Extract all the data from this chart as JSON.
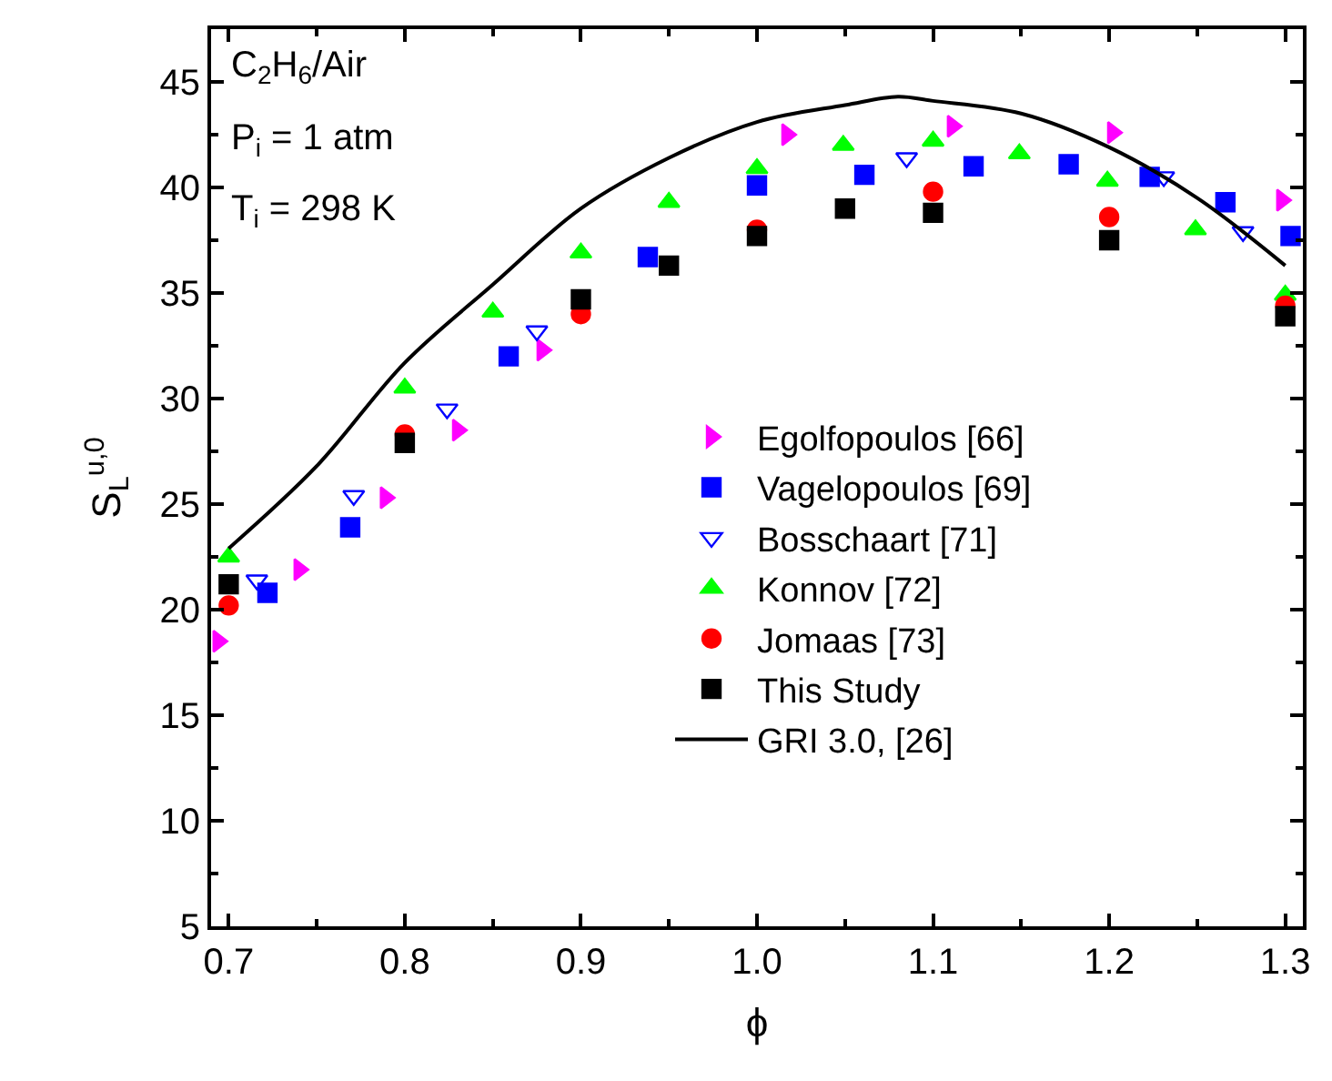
{
  "chart_data": {
    "type": "scatter",
    "xlabel": "ϕ",
    "ylabel": "S$_{L}$$^{u,0}$",
    "annotations": [
      "C$_{2}$H$_{6}$/Air",
      "P$_{i}$ = 1 atm",
      "T$_{i}$ = 298 K"
    ],
    "xlim": [
      0.69,
      1.31
    ],
    "xticks": [
      0.7,
      0.8,
      0.9,
      {
        "value": 1.0,
        "label": "1.0"
      },
      1.1,
      1.2,
      1.3
    ],
    "ylim": [
      5,
      47.5
    ],
    "yticks": [
      5,
      10,
      15,
      20,
      25,
      30,
      35,
      40,
      45
    ],
    "legend": "bottom right",
    "series": [
      {
        "name": "Egolfopoulos [66]",
        "color": "#ff00ff",
        "marker": "triangle-right",
        "x": [
          0.694,
          0.74,
          0.789,
          0.83,
          0.878,
          1.017,
          1.111,
          1.202,
          1.298
        ],
        "values": [
          18.5,
          21.9,
          25.3,
          28.5,
          32.3,
          42.5,
          42.9,
          42.6,
          39.4
        ]
      },
      {
        "name": "Vagelopoulos [69]",
        "color": "#0000ff",
        "marker": "square",
        "x": [
          0.722,
          0.769,
          0.859,
          0.938,
          1.0,
          1.061,
          1.123,
          1.177,
          1.223,
          1.266,
          1.303
        ],
        "values": [
          20.8,
          23.9,
          32.0,
          36.7,
          40.1,
          40.6,
          41.0,
          41.1,
          40.5,
          39.3,
          37.7
        ]
      },
      {
        "name": "Bosschaart [71]",
        "color": "#0000ff",
        "marker": "triangle-down-open",
        "x": [
          0.716,
          0.771,
          0.824,
          0.875,
          1.085,
          1.231,
          1.276
        ],
        "values": [
          21.4,
          25.4,
          29.5,
          33.2,
          41.4,
          40.5,
          37.9
        ]
      },
      {
        "name": "Konnov [72]",
        "color": "#00ff00",
        "marker": "triangle",
        "x": [
          0.7,
          0.8,
          0.85,
          0.9,
          0.95,
          1.0,
          1.049,
          1.1,
          1.149,
          1.199,
          1.249,
          1.3
        ],
        "values": [
          22.5,
          30.5,
          34.1,
          36.9,
          39.3,
          40.9,
          42.0,
          42.2,
          41.6,
          40.3,
          38.0,
          34.9
        ]
      },
      {
        "name": "Jomaas [73]",
        "color": "#ff0000",
        "marker": "circle",
        "x": [
          0.7,
          0.8,
          0.9,
          1.0,
          1.1,
          1.2,
          1.3
        ],
        "values": [
          20.2,
          28.3,
          34.0,
          38.0,
          39.8,
          38.6,
          34.4
        ]
      },
      {
        "name": "This Study",
        "color": "#000000",
        "marker": "square",
        "x": [
          0.7,
          0.8,
          0.9,
          0.95,
          1.0,
          1.05,
          1.1,
          1.2,
          1.3
        ],
        "values": [
          21.2,
          27.9,
          34.7,
          36.3,
          37.7,
          39.0,
          38.8,
          37.5,
          33.9
        ]
      },
      {
        "name": "GRI 3.0, [26]",
        "color": "#000000",
        "type": "line",
        "marker": "none",
        "line_style": "solid",
        "x": [
          0.7,
          0.75,
          0.8,
          0.85,
          0.9,
          0.95,
          1.0,
          1.05,
          1.08,
          1.1,
          1.15,
          1.2,
          1.25,
          1.3
        ],
        "values": [
          22.9,
          26.8,
          31.7,
          35.4,
          39.0,
          41.4,
          43.1,
          43.9,
          44.3,
          44.1,
          43.5,
          41.9,
          39.5,
          36.3
        ]
      }
    ]
  }
}
